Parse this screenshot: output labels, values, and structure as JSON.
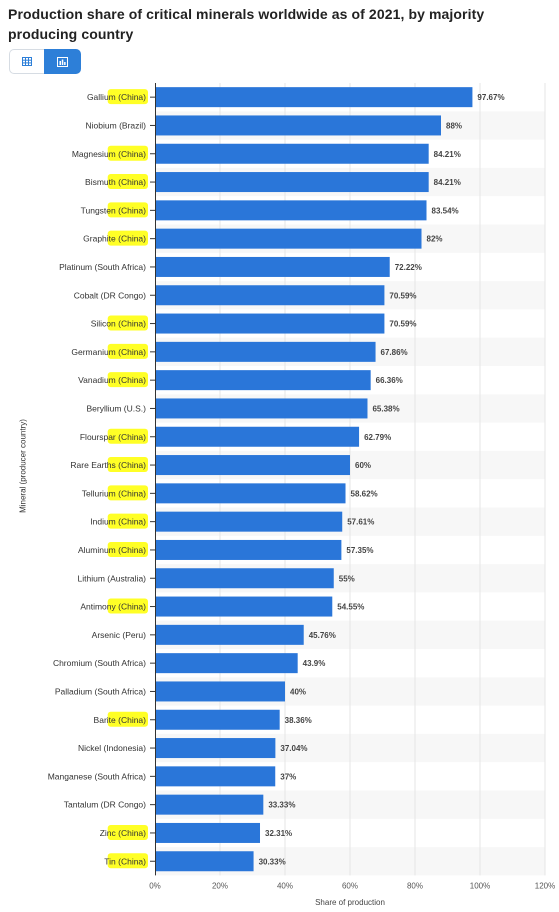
{
  "title": "Production share of critical minerals worldwide as of 2021, by majority producing country",
  "controls": {
    "table_icon": "table-icon",
    "chart_icon": "bar-chart-icon",
    "active": "chart"
  },
  "colors": {
    "bar": "#2a76d9",
    "highlight": "#ffff00",
    "alt_row": "#f7f7f7",
    "toggle_active": "#2d7fd8"
  },
  "chart_data": {
    "type": "bar",
    "orientation": "horizontal",
    "xlabel": "Share of production",
    "ylabel": "Mineral (producer country)",
    "xlim": [
      0,
      120
    ],
    "xticks": [
      "0%",
      "20%",
      "40%",
      "60%",
      "80%",
      "100%",
      "120%"
    ],
    "grid": true,
    "categories": [
      {
        "mineral": "Gallium",
        "country": "(China)",
        "highlighted": true
      },
      {
        "mineral": "Niobium",
        "country": "(Brazil)",
        "highlighted": false
      },
      {
        "mineral": "Magnesium",
        "country": "(China)",
        "highlighted": true
      },
      {
        "mineral": "Bismuth",
        "country": "(China)",
        "highlighted": true
      },
      {
        "mineral": "Tungsten",
        "country": "(China)",
        "highlighted": true
      },
      {
        "mineral": "Graphite",
        "country": "(China)",
        "highlighted": true
      },
      {
        "mineral": "Platinum",
        "country": "(South Africa)",
        "highlighted": false
      },
      {
        "mineral": "Cobalt",
        "country": "(DR Congo)",
        "highlighted": false
      },
      {
        "mineral": "Silicon",
        "country": "(China)",
        "highlighted": true
      },
      {
        "mineral": "Germanium",
        "country": "(China)",
        "highlighted": true
      },
      {
        "mineral": "Vanadium",
        "country": "(China)",
        "highlighted": true
      },
      {
        "mineral": "Beryllium",
        "country": "(U.S.)",
        "highlighted": false
      },
      {
        "mineral": "Flourspar",
        "country": "(China)",
        "highlighted": true
      },
      {
        "mineral": "Rare Earths",
        "country": "(China)",
        "highlighted": true
      },
      {
        "mineral": "Tellurium",
        "country": "(China)",
        "highlighted": true
      },
      {
        "mineral": "Indium",
        "country": "(China)",
        "highlighted": true
      },
      {
        "mineral": "Aluminum",
        "country": "(China)",
        "highlighted": true
      },
      {
        "mineral": "Lithium",
        "country": "(Australia)",
        "highlighted": false
      },
      {
        "mineral": "Antimony",
        "country": "(China)",
        "highlighted": true
      },
      {
        "mineral": "Arsenic",
        "country": "(Peru)",
        "highlighted": false
      },
      {
        "mineral": "Chromium",
        "country": "(South Africa)",
        "highlighted": false
      },
      {
        "mineral": "Palladium",
        "country": "(South Africa)",
        "highlighted": false
      },
      {
        "mineral": "Barite",
        "country": "(China)",
        "highlighted": true
      },
      {
        "mineral": "Nickel",
        "country": "(Indonesia)",
        "highlighted": false
      },
      {
        "mineral": "Manganese",
        "country": "(South Africa)",
        "highlighted": false
      },
      {
        "mineral": "Tantalum",
        "country": "(DR Congo)",
        "highlighted": false
      },
      {
        "mineral": "Zinc",
        "country": "(China)",
        "highlighted": true
      },
      {
        "mineral": "Tin",
        "country": "(China)",
        "highlighted": true
      }
    ],
    "values": [
      97.67,
      88,
      84.21,
      84.21,
      83.54,
      82,
      72.22,
      70.59,
      70.59,
      67.86,
      66.36,
      65.38,
      62.79,
      60,
      58.62,
      57.61,
      57.35,
      55,
      54.55,
      45.76,
      43.9,
      40,
      38.36,
      37.04,
      37,
      33.33,
      32.31,
      30.33
    ],
    "value_labels": [
      "97.67%",
      "88%",
      "84.21%",
      "84.21%",
      "83.54%",
      "82%",
      "72.22%",
      "70.59%",
      "70.59%",
      "67.86%",
      "66.36%",
      "65.38%",
      "62.79%",
      "60%",
      "58.62%",
      "57.61%",
      "57.35%",
      "55%",
      "54.55%",
      "45.76%",
      "43.9%",
      "40%",
      "38.36%",
      "37.04%",
      "37%",
      "33.33%",
      "32.31%",
      "30.33%"
    ]
  }
}
